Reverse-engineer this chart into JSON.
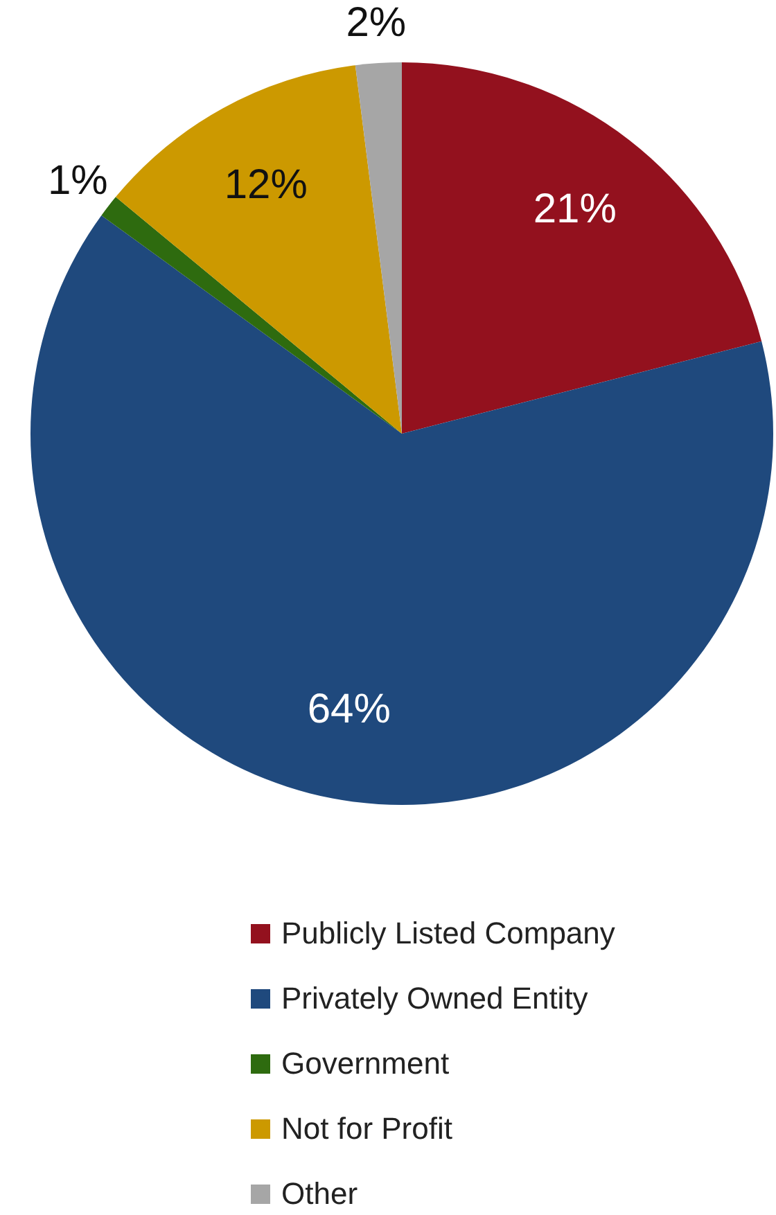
{
  "chart_data": {
    "type": "pie",
    "categories": [
      "Publicly Listed Company",
      "Privately Owned Entity",
      "Government",
      "Not for Profit",
      "Other"
    ],
    "values": [
      21,
      64,
      1,
      12,
      2
    ],
    "colors": [
      "#93111e",
      "#1f497d",
      "#2e6b0f",
      "#cc9900",
      "#a6a6a6"
    ],
    "value_labels": [
      "21%",
      "64%",
      "1%",
      "12%",
      "2%"
    ],
    "legend": "bottom"
  }
}
